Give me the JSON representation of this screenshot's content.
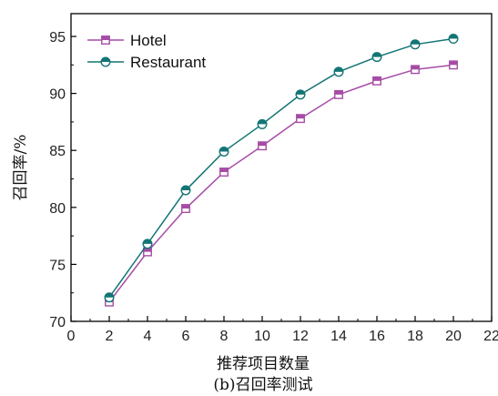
{
  "chart_data": {
    "type": "line",
    "title": "",
    "caption": "(b)召回率测试",
    "xlabel": "推荐项目数量",
    "ylabel": "召回率/%",
    "xlim": [
      0,
      22
    ],
    "ylim": [
      70,
      97
    ],
    "xticks": [
      0,
      2,
      4,
      6,
      8,
      10,
      12,
      14,
      16,
      18,
      20,
      22
    ],
    "yticks": [
      70,
      75,
      80,
      85,
      90,
      95
    ],
    "grid": false,
    "legend_position": "top-left",
    "x": [
      2,
      4,
      6,
      8,
      10,
      12,
      14,
      16,
      18,
      20
    ],
    "series": [
      {
        "name": "Hotel",
        "color": "#a64ca6",
        "marker": "square-half",
        "values": [
          71.7,
          76.1,
          79.9,
          83.1,
          85.4,
          87.8,
          89.9,
          91.1,
          92.1,
          92.5
        ]
      },
      {
        "name": "Restaurant",
        "color": "#137575",
        "marker": "circle-half",
        "values": [
          72.1,
          76.8,
          81.5,
          84.9,
          87.3,
          89.9,
          91.9,
          93.2,
          94.3,
          94.8
        ]
      }
    ]
  }
}
